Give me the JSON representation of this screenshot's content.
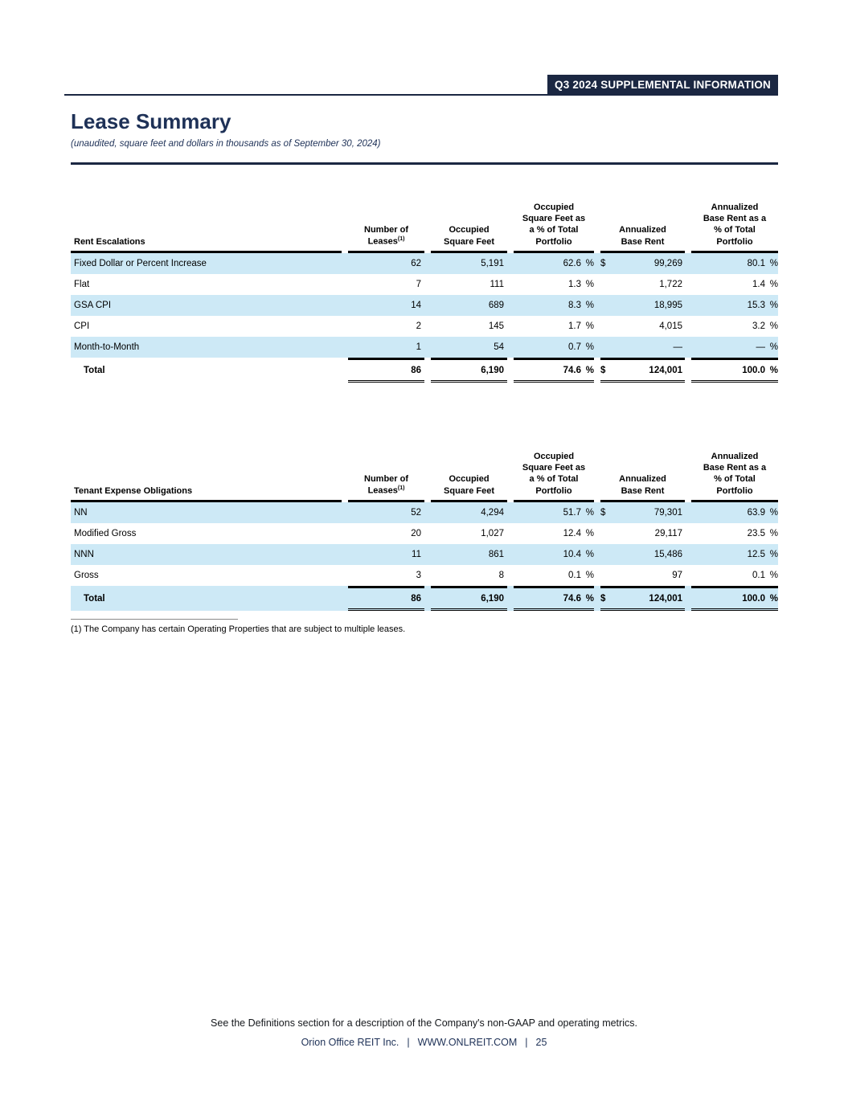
{
  "header": {
    "badge": "Q3 2024 SUPPLEMENTAL INFORMATION",
    "title": "Lease Summary",
    "subtitle": "(unaudited, square feet and dollars in thousands as of September 30, 2024)"
  },
  "percent_sign": "%",
  "columns": [
    {
      "id": "leases",
      "lines": [
        "Number of",
        "Leases"
      ],
      "sup": "(1)"
    },
    {
      "id": "sqft",
      "lines": [
        "Occupied",
        "Square Feet"
      ]
    },
    {
      "id": "sqft_pct",
      "lines": [
        "Occupied",
        "Square Feet as",
        "a % of Total",
        "Portfolio"
      ]
    },
    {
      "id": "abr",
      "lines": [
        "Annualized",
        "Base Rent"
      ]
    },
    {
      "id": "abr_pct",
      "lines": [
        "Annualized",
        "Base Rent as a",
        "% of Total",
        "Portfolio"
      ]
    }
  ],
  "tables": [
    {
      "label_header": "Rent Escalations",
      "rows": [
        {
          "label": "Fixed Dollar or Percent Increase",
          "leases": "62",
          "sqft": "5,191",
          "sqft_pct": "62.6",
          "abr_prefix": "$",
          "abr": "99,269",
          "abr_pct": "80.1",
          "shaded": true
        },
        {
          "label": "Flat",
          "leases": "7",
          "sqft": "111",
          "sqft_pct": "1.3",
          "abr_prefix": "",
          "abr": "1,722",
          "abr_pct": "1.4",
          "shaded": false
        },
        {
          "label": "GSA CPI",
          "leases": "14",
          "sqft": "689",
          "sqft_pct": "8.3",
          "abr_prefix": "",
          "abr": "18,995",
          "abr_pct": "15.3",
          "shaded": true
        },
        {
          "label": "CPI",
          "leases": "2",
          "sqft": "145",
          "sqft_pct": "1.7",
          "abr_prefix": "",
          "abr": "4,015",
          "abr_pct": "3.2",
          "shaded": false
        },
        {
          "label": "Month-to-Month",
          "leases": "1",
          "sqft": "54",
          "sqft_pct": "0.7",
          "abr_prefix": "",
          "abr": "—",
          "abr_pct": "—",
          "shaded": true
        }
      ],
      "total": {
        "label": "Total",
        "leases": "86",
        "sqft": "6,190",
        "sqft_pct": "74.6",
        "abr_prefix": "$",
        "abr": "124,001",
        "abr_pct": "100.0",
        "shaded": false
      }
    },
    {
      "label_header": "Tenant Expense Obligations",
      "rows": [
        {
          "label": "NN",
          "leases": "52",
          "sqft": "4,294",
          "sqft_pct": "51.7",
          "abr_prefix": "$",
          "abr": "79,301",
          "abr_pct": "63.9",
          "shaded": true
        },
        {
          "label": "Modified Gross",
          "leases": "20",
          "sqft": "1,027",
          "sqft_pct": "12.4",
          "abr_prefix": "",
          "abr": "29,117",
          "abr_pct": "23.5",
          "shaded": false
        },
        {
          "label": "NNN",
          "leases": "11",
          "sqft": "861",
          "sqft_pct": "10.4",
          "abr_prefix": "",
          "abr": "15,486",
          "abr_pct": "12.5",
          "shaded": true
        },
        {
          "label": "Gross",
          "leases": "3",
          "sqft": "8",
          "sqft_pct": "0.1",
          "abr_prefix": "",
          "abr": "97",
          "abr_pct": "0.1",
          "shaded": false
        }
      ],
      "total": {
        "label": "Total",
        "leases": "86",
        "sqft": "6,190",
        "sqft_pct": "74.6",
        "abr_prefix": "$",
        "abr": "124,001",
        "abr_pct": "100.0",
        "shaded": true
      }
    }
  ],
  "footnote": "(1) The Company has certain Operating Properties that are subject to multiple leases.",
  "footer": {
    "note": "See the Definitions section for a description of the Company's non-GAAP and operating metrics.",
    "company": "Orion Office REIT Inc.",
    "separator": "|",
    "url": "WWW.ONLREIT.COM",
    "page": "25"
  },
  "colors": {
    "navy_badge": "#1b2742",
    "navy_text": "#1e3157",
    "row_shade": "#cde9f6",
    "table_line": "#000000"
  }
}
